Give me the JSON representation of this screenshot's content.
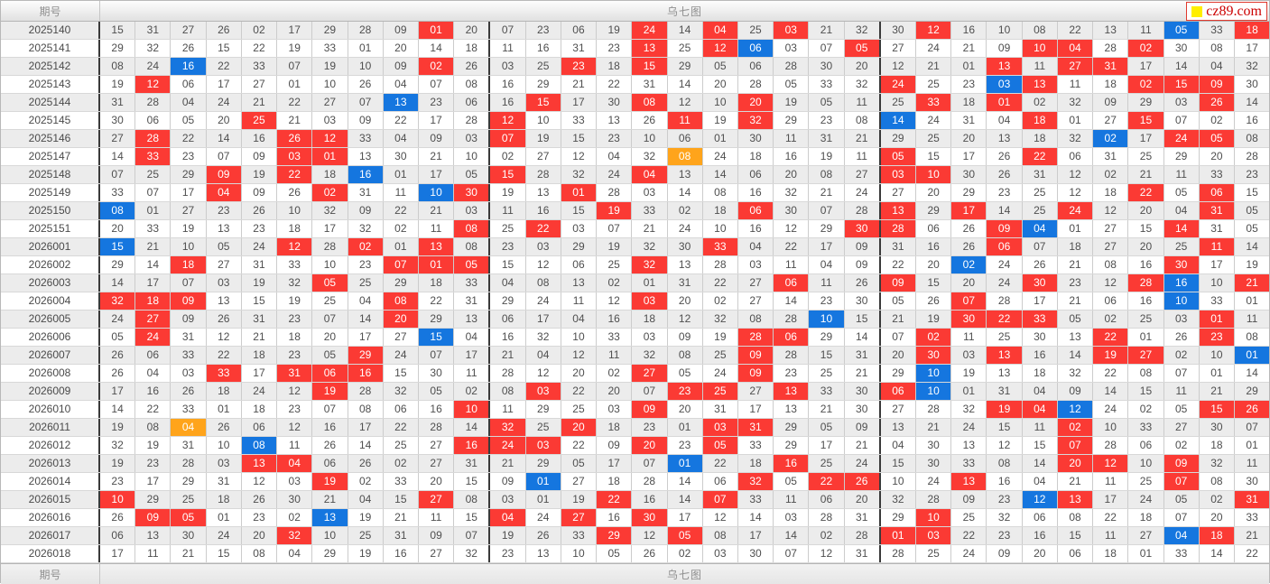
{
  "header": {
    "period_label": "期号",
    "chart_title": "乌七图"
  },
  "footer": {
    "period_label": "期号",
    "chart_title": "乌七图"
  },
  "logo": {
    "text": "cz89.com"
  },
  "colors": {
    "red_ball": "#fb3a34",
    "blue_ball": "#1576df",
    "red_blue_overlap": "#ffa41b",
    "row_odd": "#ececec",
    "row_even": "#ffffff",
    "grid_line": "#cccccc",
    "group_divider": "#3a3a3a"
  },
  "chart_data": {
    "type": "table",
    "title": "乌七图",
    "columns_per_group": 11,
    "groups": 3,
    "cell_state_codes": {
      "r": "red-ball",
      "b": "blue-ball",
      "o": "red-and-blue-ball"
    },
    "rows": [
      {
        "period": "2025140",
        "cells": [
          "15",
          "31",
          "27",
          "26",
          "02",
          "17",
          "29",
          "28",
          "09",
          "01r",
          "20",
          "07",
          "23",
          "06",
          "19",
          "24r",
          "14",
          "04r",
          "25",
          "03r",
          "21",
          "32",
          "30",
          "12r",
          "16",
          "10",
          "08",
          "22",
          "13",
          "11",
          "05b",
          "33",
          "18r"
        ]
      },
      {
        "period": "2025141",
        "cells": [
          "29",
          "32",
          "26",
          "15",
          "22",
          "19",
          "33",
          "01",
          "20",
          "14",
          "18",
          "11",
          "16",
          "31",
          "23",
          "13r",
          "25",
          "12r",
          "06b",
          "03",
          "07",
          "05r",
          "27",
          "24",
          "21",
          "09",
          "10r",
          "04r",
          "28",
          "02r",
          "30",
          "08",
          "17"
        ]
      },
      {
        "period": "2025142",
        "cells": [
          "08",
          "24",
          "16b",
          "22",
          "33",
          "07",
          "19",
          "10",
          "09",
          "02r",
          "26",
          "03",
          "25",
          "23r",
          "18",
          "15r",
          "29",
          "05",
          "06",
          "28",
          "30",
          "20",
          "12",
          "21",
          "01",
          "13r",
          "11",
          "27r",
          "31r",
          "17",
          "14",
          "04",
          "32"
        ]
      },
      {
        "period": "2025143",
        "cells": [
          "19",
          "12r",
          "06",
          "17",
          "27",
          "01",
          "10",
          "26",
          "04",
          "07",
          "08",
          "16",
          "29",
          "21",
          "22",
          "31",
          "14",
          "20",
          "28",
          "05",
          "33",
          "32",
          "24r",
          "25",
          "23",
          "03b",
          "13r",
          "11",
          "18",
          "02r",
          "15r",
          "09r",
          "30"
        ]
      },
      {
        "period": "2025144",
        "cells": [
          "31",
          "28",
          "04",
          "24",
          "21",
          "22",
          "27",
          "07",
          "13b",
          "23",
          "06",
          "16",
          "15r",
          "17",
          "30",
          "08r",
          "12",
          "10",
          "20r",
          "19",
          "05",
          "11",
          "25",
          "33r",
          "18",
          "01r",
          "02",
          "32",
          "09",
          "29",
          "03",
          "26r",
          "14"
        ]
      },
      {
        "period": "2025145",
        "cells": [
          "30",
          "06",
          "05",
          "20",
          "25r",
          "21",
          "03",
          "09",
          "22",
          "17",
          "28",
          "12r",
          "10",
          "33",
          "13",
          "26",
          "11r",
          "19",
          "32r",
          "29",
          "23",
          "08",
          "14b",
          "24",
          "31",
          "04",
          "18r",
          "01",
          "27",
          "15r",
          "07",
          "02",
          "16"
        ]
      },
      {
        "period": "2025146",
        "cells": [
          "27",
          "28r",
          "22",
          "14",
          "16",
          "26r",
          "12r",
          "33",
          "04",
          "09",
          "03",
          "07r",
          "19",
          "15",
          "23",
          "10",
          "06",
          "01",
          "30",
          "11",
          "31",
          "21",
          "29",
          "25",
          "20",
          "13",
          "18",
          "32",
          "02b",
          "17",
          "24r",
          "05r",
          "08"
        ]
      },
      {
        "period": "2025147",
        "cells": [
          "14",
          "33r",
          "23",
          "07",
          "09",
          "03r",
          "01r",
          "13",
          "30",
          "21",
          "10",
          "02",
          "27",
          "12",
          "04",
          "32",
          "08o",
          "24",
          "18",
          "16",
          "19",
          "11",
          "05r",
          "15",
          "17",
          "26",
          "22r",
          "06",
          "31",
          "25",
          "29",
          "20",
          "28"
        ]
      },
      {
        "period": "2025148",
        "cells": [
          "07",
          "25",
          "29",
          "09r",
          "19",
          "22r",
          "18",
          "16b",
          "01",
          "17",
          "05",
          "15r",
          "28",
          "32",
          "24",
          "04r",
          "13",
          "14",
          "06",
          "20",
          "08",
          "27",
          "03r",
          "10r",
          "30",
          "26",
          "31",
          "12",
          "02",
          "21",
          "11",
          "33",
          "23"
        ]
      },
      {
        "period": "2025149",
        "cells": [
          "33",
          "07",
          "17",
          "04r",
          "09",
          "26",
          "02r",
          "31",
          "11",
          "10b",
          "30r",
          "19",
          "13",
          "01r",
          "28",
          "03",
          "14",
          "08",
          "16",
          "32",
          "21",
          "24",
          "27",
          "20",
          "29",
          "23",
          "25",
          "12",
          "18",
          "22r",
          "05",
          "06r",
          "15"
        ]
      },
      {
        "period": "2025150",
        "cells": [
          "08b",
          "01",
          "27",
          "23",
          "26",
          "10",
          "32",
          "09",
          "22",
          "21",
          "03",
          "11",
          "16",
          "15",
          "19r",
          "33",
          "02",
          "18",
          "06r",
          "30",
          "07",
          "28",
          "13r",
          "29",
          "17r",
          "14",
          "25",
          "24r",
          "12",
          "20",
          "04",
          "31r",
          "05"
        ]
      },
      {
        "period": "2025151",
        "cells": [
          "20",
          "33",
          "19",
          "13",
          "23",
          "18",
          "17",
          "32",
          "02",
          "11",
          "08r",
          "25",
          "22r",
          "03",
          "07",
          "21",
          "24",
          "10",
          "16",
          "12",
          "29",
          "30r",
          "28r",
          "06",
          "26",
          "09r",
          "04b",
          "01",
          "27",
          "15",
          "14r",
          "31",
          "05"
        ]
      },
      {
        "period": "2026001",
        "cells": [
          "15b",
          "21",
          "10",
          "05",
          "24",
          "12r",
          "28",
          "02r",
          "01",
          "13r",
          "08",
          "23",
          "03",
          "29",
          "19",
          "32",
          "30",
          "33r",
          "04",
          "22",
          "17",
          "09",
          "31",
          "16",
          "26",
          "06r",
          "07",
          "18",
          "27",
          "20",
          "25",
          "11r",
          "14"
        ]
      },
      {
        "period": "2026002",
        "cells": [
          "29",
          "14",
          "18r",
          "27",
          "31",
          "33",
          "10",
          "23",
          "07r",
          "01r",
          "05r",
          "15",
          "12",
          "06",
          "25",
          "32r",
          "13",
          "28",
          "03",
          "11",
          "04",
          "09",
          "22",
          "20",
          "02b",
          "24",
          "26",
          "21",
          "08",
          "16",
          "30r",
          "17",
          "19"
        ]
      },
      {
        "period": "2026003",
        "cells": [
          "14",
          "17",
          "07",
          "03",
          "19",
          "32",
          "05r",
          "25",
          "29",
          "18",
          "33",
          "04",
          "08",
          "13",
          "02",
          "01",
          "31",
          "22",
          "27",
          "06r",
          "11",
          "26",
          "09r",
          "15",
          "20",
          "24",
          "30r",
          "23",
          "12",
          "28r",
          "16b",
          "10",
          "21r"
        ]
      },
      {
        "period": "2026004",
        "cells": [
          "32r",
          "18r",
          "09r",
          "13",
          "15",
          "19",
          "25",
          "04",
          "08r",
          "22",
          "31",
          "29",
          "24",
          "11",
          "12",
          "03r",
          "20",
          "02",
          "27",
          "14",
          "23",
          "30",
          "05",
          "26",
          "07r",
          "28",
          "17",
          "21",
          "06",
          "16",
          "10b",
          "33",
          "01"
        ]
      },
      {
        "period": "2026005",
        "cells": [
          "24",
          "27r",
          "09",
          "26",
          "31",
          "23",
          "07",
          "14",
          "20r",
          "29",
          "13",
          "06",
          "17",
          "04",
          "16",
          "18",
          "12",
          "32",
          "08",
          "28",
          "10b",
          "15",
          "21",
          "19",
          "30r",
          "22r",
          "33r",
          "05",
          "02",
          "25",
          "03",
          "01r",
          "11"
        ]
      },
      {
        "period": "2026006",
        "cells": [
          "05",
          "24r",
          "31",
          "12",
          "21",
          "18",
          "20",
          "17",
          "27",
          "15b",
          "04",
          "16",
          "32",
          "10",
          "33",
          "03",
          "09",
          "19",
          "28r",
          "06r",
          "29",
          "14",
          "07",
          "02r",
          "11",
          "25",
          "30",
          "13",
          "22r",
          "01",
          "26",
          "23r",
          "08"
        ]
      },
      {
        "period": "2026007",
        "cells": [
          "26",
          "06",
          "33",
          "22",
          "18",
          "23",
          "05",
          "29r",
          "24",
          "07",
          "17",
          "21",
          "04",
          "12",
          "11",
          "32",
          "08",
          "25",
          "09r",
          "28",
          "15",
          "31",
          "20",
          "30r",
          "03",
          "13r",
          "16",
          "14",
          "19r",
          "27r",
          "02",
          "10",
          "01b"
        ]
      },
      {
        "period": "2026008",
        "cells": [
          "26",
          "04",
          "03",
          "33r",
          "17",
          "31r",
          "06r",
          "16r",
          "15",
          "30",
          "11",
          "28",
          "12",
          "20",
          "02",
          "27r",
          "05",
          "24",
          "09r",
          "23",
          "25",
          "21",
          "29",
          "10b",
          "19",
          "13",
          "18",
          "32",
          "22",
          "08",
          "07",
          "01",
          "14"
        ]
      },
      {
        "period": "2026009",
        "cells": [
          "17",
          "16",
          "26",
          "18",
          "24",
          "12",
          "19r",
          "28",
          "32",
          "05",
          "02",
          "08",
          "03r",
          "22",
          "20",
          "07",
          "23r",
          "25r",
          "27",
          "13r",
          "33",
          "30",
          "06r",
          "10b",
          "01",
          "31",
          "04",
          "09",
          "14",
          "15",
          "11",
          "21",
          "29"
        ]
      },
      {
        "period": "2026010",
        "cells": [
          "14",
          "22",
          "33",
          "01",
          "18",
          "23",
          "07",
          "08",
          "06",
          "16",
          "10r",
          "11",
          "29",
          "25",
          "03",
          "09r",
          "20",
          "31",
          "17",
          "13",
          "21",
          "30",
          "27",
          "28",
          "32",
          "19r",
          "04r",
          "12b",
          "24",
          "02",
          "05",
          "15r",
          "26r"
        ]
      },
      {
        "period": "2026011",
        "cells": [
          "19",
          "08",
          "04o",
          "26",
          "06",
          "12",
          "16",
          "17",
          "22",
          "28",
          "14",
          "32r",
          "25",
          "20r",
          "18",
          "23",
          "01",
          "03r",
          "31r",
          "29",
          "05",
          "09",
          "13",
          "21",
          "24",
          "15",
          "11",
          "02r",
          "10",
          "33",
          "27",
          "30",
          "07"
        ]
      },
      {
        "period": "2026012",
        "cells": [
          "32",
          "19",
          "31",
          "10",
          "08b",
          "11",
          "26",
          "14",
          "25",
          "27",
          "16r",
          "24r",
          "03r",
          "22",
          "09",
          "20r",
          "23",
          "05r",
          "33",
          "29",
          "17",
          "21",
          "04",
          "30",
          "13",
          "12",
          "15",
          "07r",
          "28",
          "06",
          "02",
          "18",
          "01"
        ]
      },
      {
        "period": "2026013",
        "cells": [
          "19",
          "23",
          "28",
          "03",
          "13r",
          "04r",
          "06",
          "26",
          "02",
          "27",
          "31",
          "21",
          "29",
          "05",
          "17",
          "07",
          "01b",
          "22",
          "18",
          "16r",
          "25",
          "24",
          "15",
          "30",
          "33",
          "08",
          "14",
          "20r",
          "12r",
          "10",
          "09r",
          "32",
          "11"
        ]
      },
      {
        "period": "2026014",
        "cells": [
          "23",
          "17",
          "29",
          "31",
          "12",
          "03",
          "19r",
          "02",
          "33",
          "20",
          "15",
          "09",
          "01b",
          "27",
          "18",
          "28",
          "14",
          "06",
          "32r",
          "05",
          "22r",
          "26r",
          "10",
          "24",
          "13r",
          "16",
          "04",
          "21",
          "11",
          "25",
          "07r",
          "08",
          "30"
        ]
      },
      {
        "period": "2026015",
        "cells": [
          "10r",
          "29",
          "25",
          "18",
          "26",
          "30",
          "21",
          "04",
          "15",
          "27r",
          "08",
          "03",
          "01",
          "19",
          "22r",
          "16",
          "14",
          "07r",
          "33",
          "11",
          "06",
          "20",
          "32",
          "28",
          "09",
          "23",
          "12b",
          "13r",
          "17",
          "24",
          "05",
          "02",
          "31r"
        ]
      },
      {
        "period": "2026016",
        "cells": [
          "26",
          "09r",
          "05r",
          "01",
          "23",
          "02",
          "13b",
          "19",
          "21",
          "11",
          "15",
          "04r",
          "24",
          "27r",
          "16",
          "30r",
          "17",
          "12",
          "14",
          "03",
          "28",
          "31",
          "29",
          "10r",
          "25",
          "32",
          "06",
          "08",
          "22",
          "18",
          "07",
          "20",
          "33"
        ]
      },
      {
        "period": "2026017",
        "cells": [
          "06",
          "13",
          "30",
          "24",
          "20",
          "32r",
          "10",
          "25",
          "31",
          "09",
          "07",
          "19",
          "26",
          "33",
          "29r",
          "12",
          "05r",
          "08",
          "17",
          "14",
          "02",
          "28",
          "01r",
          "03r",
          "22",
          "23",
          "16",
          "15",
          "11",
          "27",
          "04b",
          "18r",
          "21"
        ]
      },
      {
        "period": "2026018",
        "cells": [
          "17",
          "11",
          "21",
          "15",
          "08",
          "04",
          "29",
          "19",
          "16",
          "27",
          "32",
          "23",
          "13",
          "10",
          "05",
          "26",
          "02",
          "03",
          "30",
          "07",
          "12",
          "31",
          "28",
          "25",
          "24",
          "09",
          "20",
          "06",
          "18",
          "01",
          "33",
          "14",
          "22"
        ]
      }
    ]
  }
}
